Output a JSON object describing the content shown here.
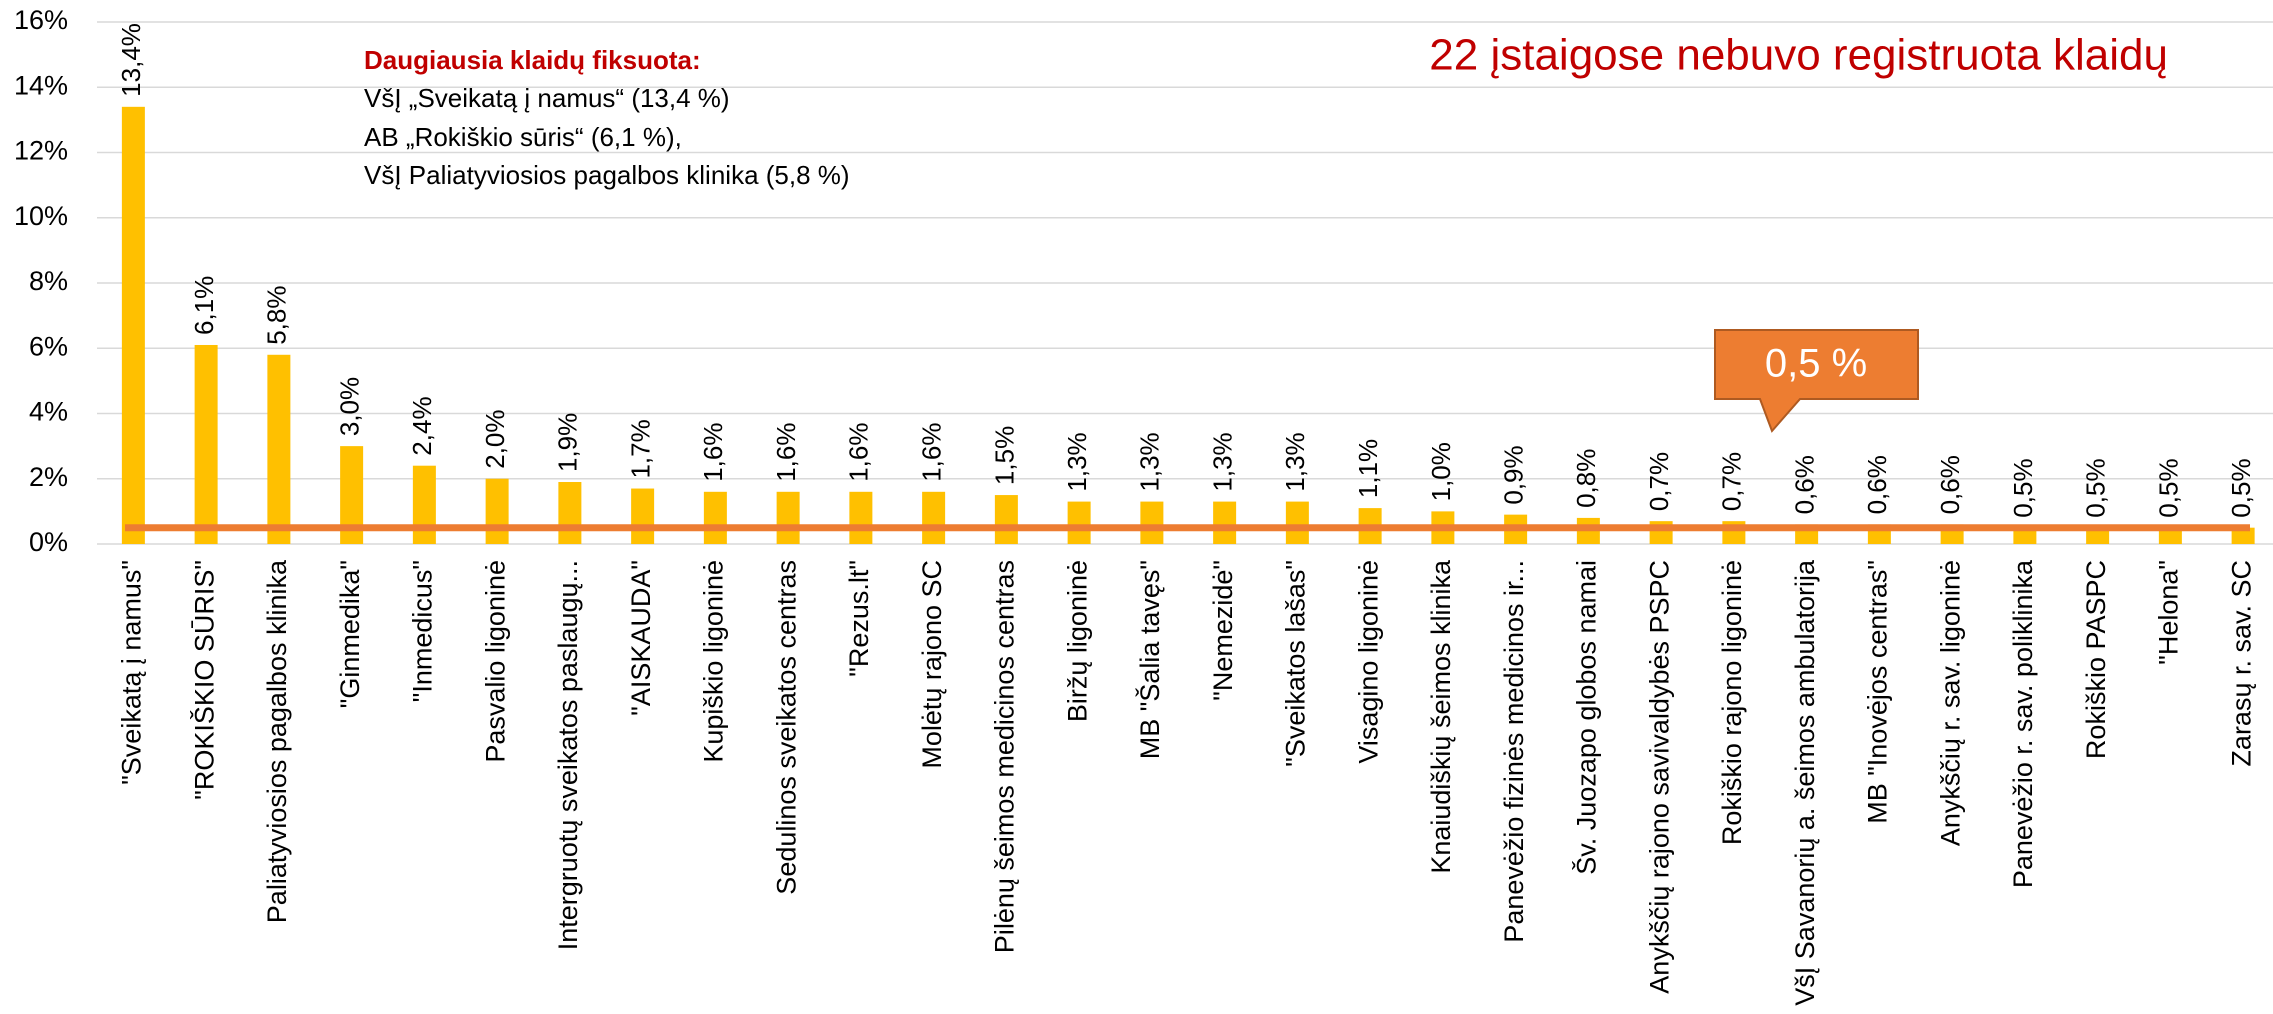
{
  "chart_data": {
    "type": "bar",
    "note": "22 įstaigose nebuvo registruota klaidų",
    "annotation_title": "Daugiausia klaidų fiksuota:",
    "annotation_lines": [
      "VšĮ „Sveikatą į namus“ (13,4 %)",
      "AB „Rokiškio sūris“ (6,1 %),",
      "VšĮ Paliatyviosios pagalbos klinika (5,8 %)"
    ],
    "reference_line": {
      "value": 0.5,
      "label": "0,5 %",
      "color": "#ed7d31"
    },
    "categories": [
      "\"Sveikatą į namus\"",
      "\"ROKIŠKIO SŪRIS\"",
      "Paliatyviosios pagalbos klinika",
      "\"Ginmedika\"",
      "\"Inmedicus\"",
      "Pasvalio ligoninė",
      "Intergruotų sveikatos paslaugų...",
      "\"AISKAUDA\"",
      "Kupiškio ligoninė",
      "Sedulinos sveikatos centras",
      "\"Rezus.lt\"",
      "Molėtų rajono SC",
      "Pilėnų šeimos medicinos centras",
      "Biržų ligoninė",
      "MB \"Šalia tavęs\"",
      "\"Nemezidė\"",
      "\"Sveikatos lašas\"",
      "Visagino ligoninė",
      "Knaiudiškių šeimos klinika",
      "Panevėžio fizinės medicinos ir...",
      "Šv. Juozapo globos namai",
      "Anykščių rajono savivaldybės PSPC",
      "Rokiškio rajono ligoninė",
      "VšĮ Savanorių a. šeimos ambulatorija",
      "MB \"Inovėjos centras\"",
      "Anykščių r. sav. ligoninė",
      "Panevėžio r. sav. poliklinika",
      "Rokiškio PASPC",
      "\"Helona\"",
      "Zarasų r. sav. SC"
    ],
    "values": [
      13.4,
      6.1,
      5.8,
      3.0,
      2.4,
      2.0,
      1.9,
      1.7,
      1.6,
      1.6,
      1.6,
      1.6,
      1.5,
      1.3,
      1.3,
      1.3,
      1.3,
      1.1,
      1.0,
      0.9,
      0.8,
      0.7,
      0.7,
      0.6,
      0.6,
      0.6,
      0.5,
      0.5,
      0.5,
      0.5
    ],
    "value_labels": [
      "13,4%",
      "6,1%",
      "5,8%",
      "3,0%",
      "2,4%",
      "2,0%",
      "1,9%",
      "1,7%",
      "1,6%",
      "1,6%",
      "1,6%",
      "1,6%",
      "1,5%",
      "1,3%",
      "1,3%",
      "1,3%",
      "1,3%",
      "1,1%",
      "1,0%",
      "0,9%",
      "0,8%",
      "0,7%",
      "0,7%",
      "0,6%",
      "0,6%",
      "0,6%",
      "0,5%",
      "0,5%",
      "0,5%",
      "0,5%"
    ],
    "color": "#ffc000",
    "ylim": [
      0,
      16
    ],
    "yticks": [
      {
        "value": 0,
        "label": "0%"
      },
      {
        "value": 2,
        "label": "2%"
      },
      {
        "value": 4,
        "label": "4%"
      },
      {
        "value": 6,
        "label": "6%"
      },
      {
        "value": 8,
        "label": "8%"
      },
      {
        "value": 10,
        "label": "10%"
      },
      {
        "value": 12,
        "label": "12%"
      },
      {
        "value": 14,
        "label": "14%"
      },
      {
        "value": 16,
        "label": "16%"
      }
    ],
    "grid": true
  }
}
